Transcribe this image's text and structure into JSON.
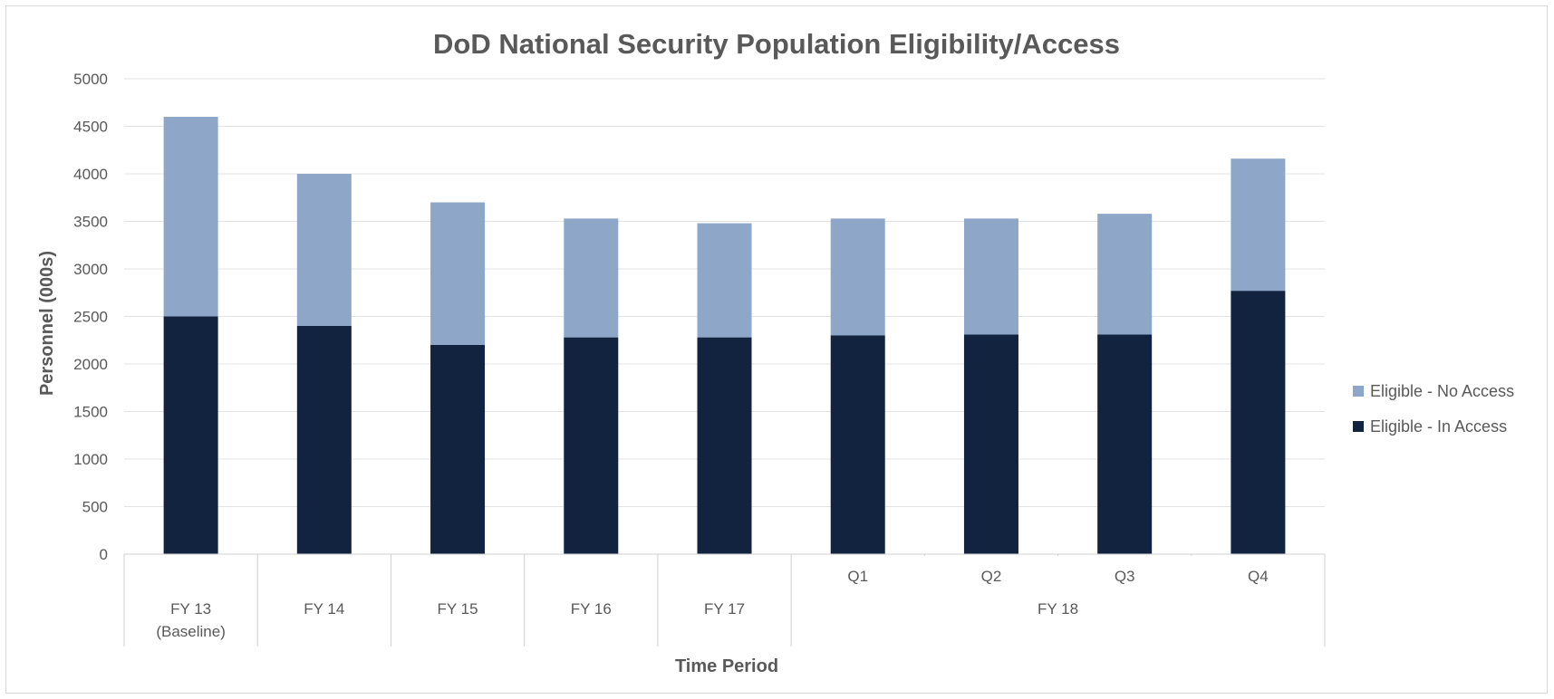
{
  "chart_data": {
    "type": "bar",
    "stacked": true,
    "title": "DoD National Security Population Eligibility/Access",
    "xlabel": "Time Period",
    "ylabel": "Personnel (000s)",
    "ylim": [
      0,
      5000
    ],
    "yticks": [
      "0",
      "500",
      "1000",
      "1500",
      "2000",
      "2500",
      "3000",
      "3500",
      "4000",
      "4500",
      "5000"
    ],
    "grid": true,
    "legend_position": "right",
    "categories": [
      {
        "label": "FY 13",
        "sublabel": "(Baseline)",
        "group": ""
      },
      {
        "label": "FY 14",
        "sublabel": "",
        "group": ""
      },
      {
        "label": "FY 15",
        "sublabel": "",
        "group": ""
      },
      {
        "label": "FY 16",
        "sublabel": "",
        "group": ""
      },
      {
        "label": "FY 17",
        "sublabel": "",
        "group": ""
      },
      {
        "label": "Q1",
        "sublabel": "",
        "group": "FY 18"
      },
      {
        "label": "Q2",
        "sublabel": "",
        "group": "FY 18"
      },
      {
        "label": "Q3",
        "sublabel": "",
        "group": "FY 18"
      },
      {
        "label": "Q4",
        "sublabel": "",
        "group": "FY 18"
      }
    ],
    "groups": [
      {
        "label": "FY 18",
        "start": 5,
        "end": 8
      }
    ],
    "series": [
      {
        "name": "Eligible - In Access",
        "color": "#12233f",
        "values": [
          2500,
          2400,
          2200,
          2280,
          2280,
          2300,
          2310,
          2310,
          2770
        ]
      },
      {
        "name": "Eligible - No Access",
        "color": "#8ea7c9",
        "values": [
          2100,
          1600,
          1500,
          1250,
          1200,
          1230,
          1220,
          1270,
          1390
        ]
      }
    ]
  }
}
